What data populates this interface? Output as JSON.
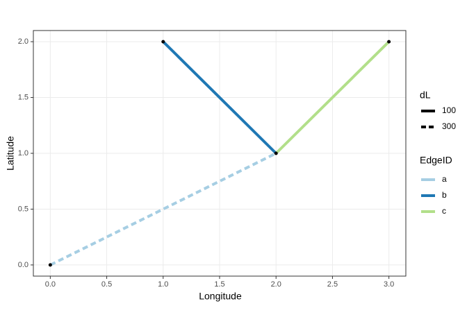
{
  "chart_data": {
    "type": "line",
    "x_label": "Longitude",
    "y_label": "Latitude",
    "xlim": [
      -0.15,
      3.15
    ],
    "ylim": [
      -0.1,
      2.1
    ],
    "xticks": [
      {
        "value": 0,
        "label": "0.0"
      },
      {
        "value": 0.5,
        "label": "0.5"
      },
      {
        "value": 1,
        "label": "1.0"
      },
      {
        "value": 1.5,
        "label": "1.5"
      },
      {
        "value": 2,
        "label": "2.0"
      },
      {
        "value": 2.5,
        "label": "2.5"
      },
      {
        "value": 3,
        "label": "3.0"
      }
    ],
    "yticks": [
      {
        "value": 0,
        "label": "0.0"
      },
      {
        "value": 0.5,
        "label": "0.5"
      },
      {
        "value": 1,
        "label": "1.0"
      },
      {
        "value": 1.5,
        "label": "1.5"
      },
      {
        "value": 2,
        "label": "2.0"
      }
    ],
    "grid": true,
    "series": [
      {
        "name": "a",
        "color": "#a6cee3",
        "linetype": "dashed",
        "x": [
          0,
          2
        ],
        "values": [
          0,
          1
        ]
      },
      {
        "name": "b",
        "color": "#1f78b4",
        "linetype": "solid",
        "x": [
          1,
          2
        ],
        "values": [
          2,
          1
        ]
      },
      {
        "name": "c",
        "color": "#b2df8a",
        "linetype": "solid",
        "x": [
          2,
          3
        ],
        "values": [
          1,
          2
        ]
      }
    ],
    "points": {
      "color": "#000000",
      "x": [
        0,
        1,
        2,
        3
      ],
      "values": [
        0,
        2,
        1,
        2
      ]
    },
    "linetype_legend": {
      "title": "dL",
      "items": [
        {
          "label": "100",
          "linetype": "solid"
        },
        {
          "label": "300",
          "linetype": "dashed"
        }
      ]
    },
    "color_legend_title": "EdgeID",
    "legend_position": "right"
  }
}
